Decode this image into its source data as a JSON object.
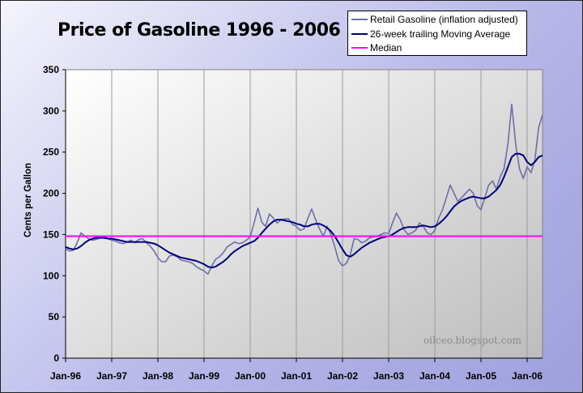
{
  "chart_data": {
    "type": "line",
    "title": "Price of Gasoline 1996 - 2006",
    "xlabel": "",
    "ylabel": "Cents per Gallon",
    "ylim": [
      0,
      350
    ],
    "yticks": [
      0,
      50,
      100,
      150,
      200,
      250,
      300,
      350
    ],
    "x_ticks": [
      "Jan-96",
      "Jan-97",
      "Jan-98",
      "Jan-99",
      "Jan-00",
      "Jan-01",
      "Jan-02",
      "Jan-03",
      "Jan-04",
      "Jan-05",
      "Jan-06"
    ],
    "xlim": [
      "1996-01",
      "2006-05"
    ],
    "grid": "vertical",
    "legend_position": "top-right",
    "annotation": "oilceo.blogspot.com",
    "colors": {
      "retail": "#6e6ea8",
      "moving_average": "#000080",
      "median": "#ff00ff"
    },
    "series": [
      {
        "name": "Retail Gasoline (inflation adjusted)",
        "x": [
          "1996-01",
          "1996-02",
          "1996-03",
          "1996-04",
          "1996-05",
          "1996-06",
          "1996-07",
          "1996-08",
          "1996-09",
          "1996-10",
          "1996-11",
          "1996-12",
          "1997-01",
          "1997-02",
          "1997-03",
          "1997-04",
          "1997-05",
          "1997-06",
          "1997-07",
          "1997-08",
          "1997-09",
          "1997-10",
          "1997-11",
          "1997-12",
          "1998-01",
          "1998-02",
          "1998-03",
          "1998-04",
          "1998-05",
          "1998-06",
          "1998-07",
          "1998-08",
          "1998-09",
          "1998-10",
          "1998-11",
          "1998-12",
          "1999-01",
          "1999-02",
          "1999-03",
          "1999-04",
          "1999-05",
          "1999-06",
          "1999-07",
          "1999-08",
          "1999-09",
          "1999-10",
          "1999-11",
          "1999-12",
          "2000-01",
          "2000-02",
          "2000-03",
          "2000-04",
          "2000-05",
          "2000-06",
          "2000-07",
          "2000-08",
          "2000-09",
          "2000-10",
          "2000-11",
          "2000-12",
          "2001-01",
          "2001-02",
          "2001-03",
          "2001-04",
          "2001-05",
          "2001-06",
          "2001-07",
          "2001-08",
          "2001-09",
          "2001-10",
          "2001-11",
          "2001-12",
          "2002-01",
          "2002-02",
          "2002-03",
          "2002-04",
          "2002-05",
          "2002-06",
          "2002-07",
          "2002-08",
          "2002-09",
          "2002-10",
          "2002-11",
          "2002-12",
          "2003-01",
          "2003-02",
          "2003-03",
          "2003-04",
          "2003-05",
          "2003-06",
          "2003-07",
          "2003-08",
          "2003-09",
          "2003-10",
          "2003-11",
          "2003-12",
          "2004-01",
          "2004-02",
          "2004-03",
          "2004-04",
          "2004-05",
          "2004-06",
          "2004-07",
          "2004-08",
          "2004-09",
          "2004-10",
          "2004-11",
          "2004-12",
          "2005-01",
          "2005-02",
          "2005-03",
          "2005-04",
          "2005-05",
          "2005-06",
          "2005-07",
          "2005-08",
          "2005-09",
          "2005-10",
          "2005-11",
          "2005-12",
          "2006-01",
          "2006-02",
          "2006-03",
          "2006-04",
          "2006-05"
        ],
        "values": [
          133,
          130,
          131,
          140,
          152,
          148,
          145,
          143,
          144,
          146,
          148,
          145,
          143,
          142,
          140,
          139,
          141,
          143,
          140,
          144,
          145,
          140,
          136,
          130,
          122,
          117,
          117,
          124,
          125,
          123,
          119,
          118,
          117,
          115,
          111,
          108,
          106,
          102,
          112,
          120,
          123,
          128,
          135,
          138,
          141,
          139,
          140,
          143,
          147,
          164,
          182,
          165,
          160,
          175,
          170,
          164,
          168,
          169,
          169,
          162,
          160,
          155,
          157,
          170,
          181,
          168,
          157,
          148,
          160,
          150,
          135,
          118,
          112,
          115,
          125,
          145,
          144,
          140,
          142,
          146,
          147,
          148,
          150,
          152,
          151,
          164,
          176,
          168,
          156,
          150,
          152,
          155,
          164,
          160,
          152,
          150,
          155,
          170,
          180,
          195,
          210,
          200,
          190,
          195,
          200,
          205,
          200,
          185,
          180,
          195,
          210,
          215,
          205,
          220,
          230,
          260,
          308,
          260,
          230,
          218,
          232,
          225,
          240,
          280,
          295
        ]
      },
      {
        "name": "26-week trailing Moving Average",
        "x": [
          "1996-01",
          "1996-02",
          "1996-03",
          "1996-04",
          "1996-05",
          "1996-06",
          "1996-07",
          "1996-08",
          "1996-09",
          "1996-10",
          "1996-11",
          "1996-12",
          "1997-01",
          "1997-02",
          "1997-03",
          "1997-04",
          "1997-05",
          "1997-06",
          "1997-07",
          "1997-08",
          "1997-09",
          "1997-10",
          "1997-11",
          "1997-12",
          "1998-01",
          "1998-02",
          "1998-03",
          "1998-04",
          "1998-05",
          "1998-06",
          "1998-07",
          "1998-08",
          "1998-09",
          "1998-10",
          "1998-11",
          "1998-12",
          "1999-01",
          "1999-02",
          "1999-03",
          "1999-04",
          "1999-05",
          "1999-06",
          "1999-07",
          "1999-08",
          "1999-09",
          "1999-10",
          "1999-11",
          "1999-12",
          "2000-01",
          "2000-02",
          "2000-03",
          "2000-04",
          "2000-05",
          "2000-06",
          "2000-07",
          "2000-08",
          "2000-09",
          "2000-10",
          "2000-11",
          "2000-12",
          "2001-01",
          "2001-02",
          "2001-03",
          "2001-04",
          "2001-05",
          "2001-06",
          "2001-07",
          "2001-08",
          "2001-09",
          "2001-10",
          "2001-11",
          "2001-12",
          "2002-01",
          "2002-02",
          "2002-03",
          "2002-04",
          "2002-05",
          "2002-06",
          "2002-07",
          "2002-08",
          "2002-09",
          "2002-10",
          "2002-11",
          "2002-12",
          "2003-01",
          "2003-02",
          "2003-03",
          "2003-04",
          "2003-05",
          "2003-06",
          "2003-07",
          "2003-08",
          "2003-09",
          "2003-10",
          "2003-11",
          "2003-12",
          "2004-01",
          "2004-02",
          "2004-03",
          "2004-04",
          "2004-05",
          "2004-06",
          "2004-07",
          "2004-08",
          "2004-09",
          "2004-10",
          "2004-11",
          "2004-12",
          "2005-01",
          "2005-02",
          "2005-03",
          "2005-04",
          "2005-05",
          "2005-06",
          "2005-07",
          "2005-08",
          "2005-09",
          "2005-10",
          "2005-11",
          "2005-12",
          "2006-01",
          "2006-02",
          "2006-03",
          "2006-04",
          "2006-05"
        ],
        "values": [
          135,
          133,
          132,
          133,
          136,
          140,
          143,
          145,
          146,
          146,
          146,
          145,
          145,
          144,
          143,
          142,
          141,
          141,
          141,
          141,
          141,
          141,
          140,
          139,
          137,
          134,
          131,
          128,
          126,
          124,
          122,
          121,
          120,
          119,
          118,
          116,
          114,
          111,
          110,
          111,
          114,
          117,
          121,
          126,
          130,
          133,
          136,
          138,
          140,
          142,
          146,
          152,
          157,
          162,
          166,
          168,
          168,
          167,
          166,
          165,
          163,
          162,
          160,
          160,
          162,
          163,
          163,
          161,
          158,
          154,
          148,
          140,
          132,
          125,
          123,
          126,
          130,
          134,
          137,
          140,
          142,
          144,
          146,
          147,
          148,
          150,
          153,
          156,
          158,
          159,
          159,
          159,
          160,
          161,
          160,
          159,
          160,
          163,
          167,
          172,
          178,
          184,
          188,
          191,
          193,
          195,
          196,
          195,
          194,
          194,
          196,
          200,
          204,
          210,
          220,
          232,
          244,
          248,
          248,
          246,
          238,
          234,
          238,
          244,
          246
        ]
      },
      {
        "name": "Median",
        "x": [
          "1996-01",
          "2006-05"
        ],
        "values": [
          148,
          148
        ]
      }
    ]
  }
}
